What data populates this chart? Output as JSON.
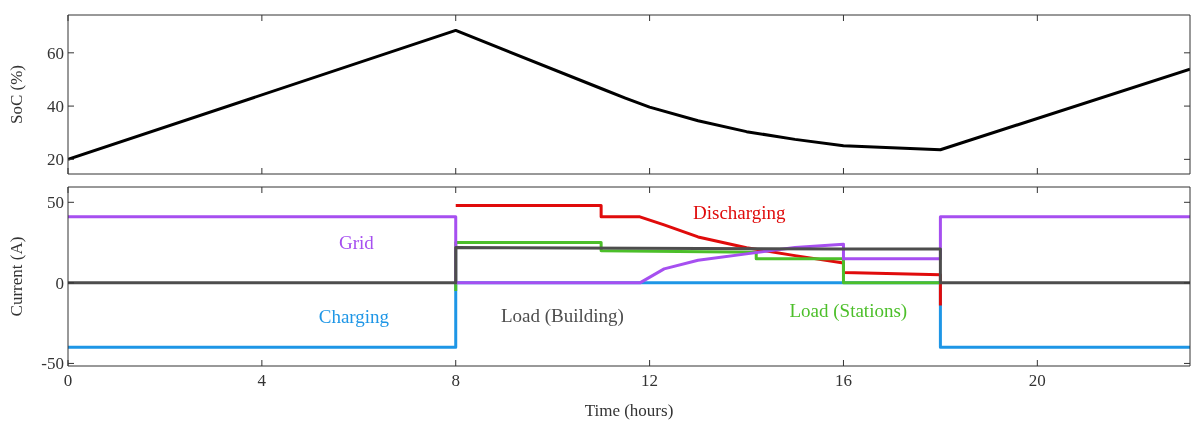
{
  "chart_data": [
    {
      "type": "line",
      "ylabel": "SoC (%)",
      "xlim": [
        0,
        23.15
      ],
      "xticks": [
        0,
        4,
        8,
        12,
        16,
        20
      ],
      "ylim": [
        14.5,
        74.2
      ],
      "yticks": [
        20,
        40,
        60
      ],
      "tick_labels": "y",
      "series": [
        {
          "color": "#000000",
          "x": [
            0,
            8,
            11,
            11.5,
            12,
            13,
            14,
            15,
            16,
            18,
            23.15
          ],
          "values": [
            20,
            68.4,
            46.6,
            43,
            39.6,
            34.5,
            30.4,
            27.5,
            25.1,
            23.6,
            53.9
          ]
        }
      ]
    },
    {
      "type": "line",
      "xlabel": "Time (hours)",
      "ylabel": "Current (A)",
      "xlim": [
        0,
        23.15
      ],
      "xticks": [
        0,
        4,
        8,
        12,
        16,
        20
      ],
      "ylim": [
        -51.6,
        59.5
      ],
      "yticks": [
        -50,
        0,
        50
      ],
      "series": [
        {
          "name": "Charging",
          "color": "#1e96e6",
          "x": [
            0,
            8,
            8,
            18,
            18,
            23.15
          ],
          "values": [
            -40,
            -40,
            0,
            0,
            -40,
            -40
          ]
        },
        {
          "name": "Discharging",
          "color": "#e00b0b",
          "x": [
            8,
            11,
            11,
            11.8,
            12.3,
            13,
            14,
            15,
            16,
            16,
            18,
            18
          ],
          "values": [
            48,
            48,
            41,
            41,
            36,
            28.5,
            21.8,
            16.9,
            12.3,
            6.5,
            5,
            -14
          ]
        },
        {
          "name": "Load (Stations)",
          "color": "#4cbf2a",
          "x": [
            8,
            8,
            11,
            11,
            14.2,
            14.2,
            16,
            16,
            18
          ],
          "values": [
            -5,
            25,
            25,
            20,
            19,
            15,
            15,
            0,
            0
          ]
        },
        {
          "name": "Grid",
          "color": "#a64ff0",
          "x": [
            0,
            8,
            8,
            11.8,
            12.3,
            13,
            14,
            15,
            16,
            16,
            18,
            18,
            23.15
          ],
          "values": [
            41,
            41,
            0,
            0,
            8.7,
            14,
            18,
            22,
            24,
            15,
            15,
            41,
            41
          ]
        },
        {
          "name": "Load (Building)",
          "color": "#4d4d4d",
          "x": [
            0,
            8,
            8,
            16,
            18,
            18,
            23.15
          ],
          "values": [
            0,
            0,
            22,
            21,
            21,
            0,
            0
          ]
        }
      ]
    }
  ]
}
